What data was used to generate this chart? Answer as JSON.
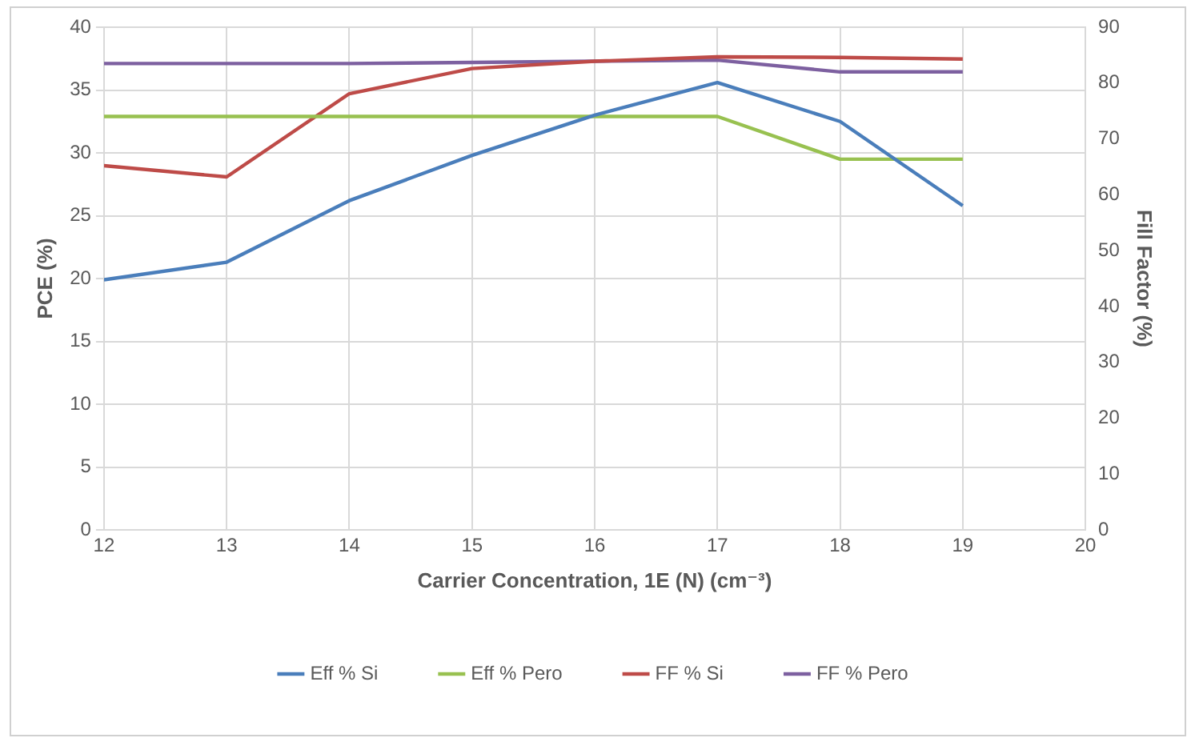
{
  "chart_data": {
    "type": "line",
    "xlabel": "Carrier Concentration, 1E (N) (cm⁻³)",
    "ylabel": "PCE (%)",
    "y2label": "Fill Factor (%)",
    "x": [
      12,
      13,
      14,
      15,
      16,
      17,
      18,
      19
    ],
    "series": [
      {
        "name": "Eff % Si",
        "color": "#4a7ebb",
        "values": [
          19.9,
          21.3,
          26.2,
          29.8,
          33.0,
          35.6,
          32.5,
          25.8
        ]
      },
      {
        "name": "Eff % Pero",
        "color": "#98c150",
        "values": [
          32.9,
          32.9,
          32.9,
          32.9,
          32.9,
          32.9,
          29.5,
          29.5
        ]
      },
      {
        "name": "FF % Si",
        "color": "#be4b48",
        "axis": "y2",
        "values": [
          65.2,
          63.2,
          78.1,
          82.6,
          83.9,
          84.7,
          84.6,
          84.3
        ]
      },
      {
        "name": "FF % Pero",
        "color": "#7d60a0",
        "axis": "y2",
        "values": [
          83.5,
          83.5,
          83.5,
          83.7,
          83.9,
          84.1,
          82.0,
          82.0
        ]
      }
    ],
    "xlim": [
      12,
      20
    ],
    "xticks": [
      12,
      13,
      14,
      15,
      16,
      17,
      18,
      19,
      20
    ],
    "ylim": [
      0,
      40
    ],
    "yticks": [
      0,
      5,
      10,
      15,
      20,
      25,
      30,
      35,
      40
    ],
    "y2lim": [
      0,
      90
    ],
    "y2ticks": [
      0,
      10,
      20,
      30,
      40,
      50,
      60,
      70,
      80,
      90
    ],
    "grid": true,
    "legend": "bottom",
    "marker": "none",
    "line_style": "solid"
  }
}
